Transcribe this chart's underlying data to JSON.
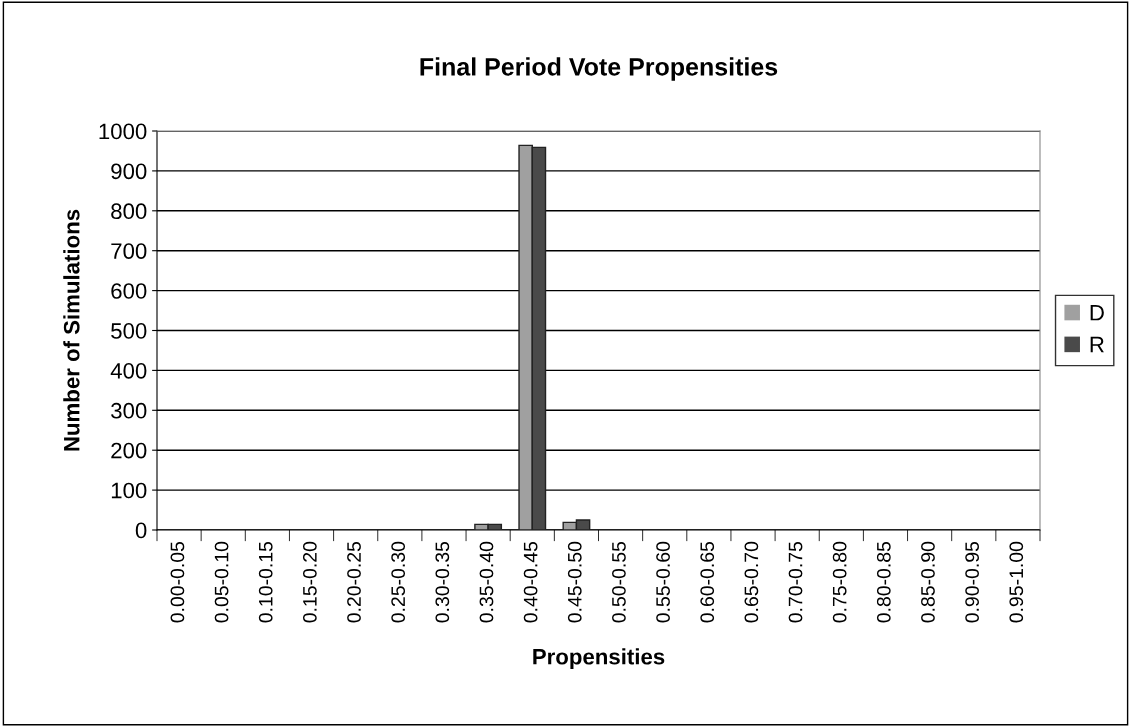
{
  "chart_data": {
    "type": "bar",
    "title": "Final Period Vote Propensities",
    "xlabel": "Propensities",
    "ylabel": "Number of Simulations",
    "categories": [
      "0.00-0.05",
      "0.05-0.10",
      "0.10-0.15",
      "0.15-0.20",
      "0.20-0.25",
      "0.25-0.30",
      "0.30-0.35",
      "0.35-0.40",
      "0.40-0.45",
      "0.45-0.50",
      "0.50-0.55",
      "0.55-0.60",
      "0.60-0.65",
      "0.65-0.70",
      "0.70-0.75",
      "0.75-0.80",
      "0.80-0.85",
      "0.85-0.90",
      "0.90-0.95",
      "0.95-1.00"
    ],
    "series": [
      {
        "name": "D",
        "color": "#a0a0a0",
        "values": [
          0,
          0,
          0,
          0,
          0,
          0,
          0,
          14,
          964,
          19,
          0,
          0,
          0,
          0,
          0,
          0,
          0,
          0,
          0,
          0
        ]
      },
      {
        "name": "R",
        "color": "#4a4a4a",
        "values": [
          0,
          0,
          0,
          0,
          0,
          0,
          0,
          14,
          959,
          25,
          0,
          0,
          0,
          0,
          0,
          0,
          0,
          0,
          0,
          0
        ]
      }
    ],
    "ylim": [
      0,
      1000
    ],
    "yticks": [
      0,
      100,
      200,
      300,
      400,
      500,
      600,
      700,
      800,
      900,
      1000
    ],
    "grid": "y",
    "legend": "right"
  }
}
